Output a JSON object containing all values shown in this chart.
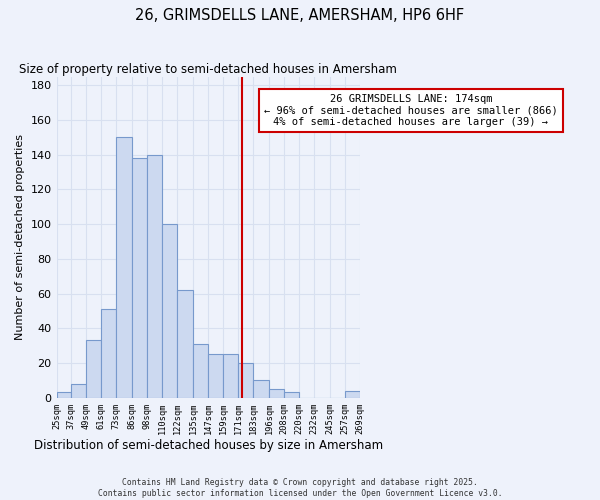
{
  "title": "26, GRIMSDELLS LANE, AMERSHAM, HP6 6HF",
  "subtitle": "Size of property relative to semi-detached houses in Amersham",
  "xlabel": "Distribution of semi-detached houses by size in Amersham",
  "ylabel": "Number of semi-detached properties",
  "bin_edges": [
    25,
    37,
    49,
    61,
    73,
    86,
    98,
    110,
    122,
    135,
    147,
    159,
    171,
    183,
    196,
    208,
    220,
    232,
    245,
    257,
    269
  ],
  "bar_heights": [
    3,
    8,
    33,
    51,
    150,
    138,
    140,
    100,
    62,
    31,
    25,
    25,
    20,
    10,
    5,
    3,
    0,
    0,
    0,
    4
  ],
  "tick_labels": [
    "25sqm",
    "37sqm",
    "49sqm",
    "61sqm",
    "73sqm",
    "86sqm",
    "98sqm",
    "110sqm",
    "122sqm",
    "135sqm",
    "147sqm",
    "159sqm",
    "171sqm",
    "183sqm",
    "196sqm",
    "208sqm",
    "220sqm",
    "232sqm",
    "245sqm",
    "257sqm",
    "269sqm"
  ],
  "bar_color": "#ccd9f0",
  "bar_edge_color": "#7799cc",
  "vline_x": 174,
  "vline_color": "#cc0000",
  "annotation_title": "26 GRIMSDELLS LANE: 174sqm",
  "annotation_line1": "← 96% of semi-detached houses are smaller (866)",
  "annotation_line2": "4% of semi-detached houses are larger (39) →",
  "annotation_box_facecolor": "#ffffff",
  "annotation_box_edgecolor": "#cc0000",
  "ylim": [
    0,
    185
  ],
  "yticks": [
    0,
    20,
    40,
    60,
    80,
    100,
    120,
    140,
    160,
    180
  ],
  "footer1": "Contains HM Land Registry data © Crown copyright and database right 2025.",
  "footer2": "Contains public sector information licensed under the Open Government Licence v3.0.",
  "bg_color": "#eef2fb",
  "grid_color": "#d8e0f0"
}
